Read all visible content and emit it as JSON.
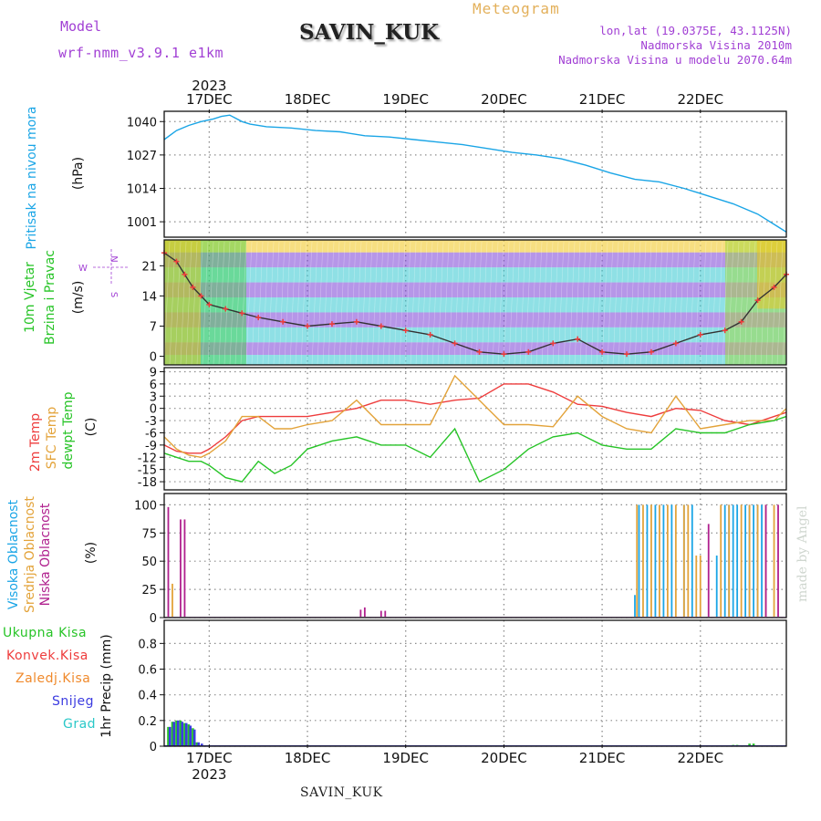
{
  "header": {
    "model_label": "Model",
    "model_version": "wrf-nmm_v3.9.1 e1km",
    "station": "SAVIN_KUK",
    "product": "Meteogram",
    "info_lines": [
      "lon,lat (19.0375E, 43.1125N)",
      "Nadmorska Visina 2010m",
      "Nadmorska Visina u modelu 2070.64m"
    ],
    "footer_station": "SAVIN_KUK",
    "credit": "made by Angel"
  },
  "time_axis": {
    "year": "2023",
    "day_labels": [
      "17DEC",
      "18DEC",
      "19DEC",
      "20DEC",
      "21DEC",
      "22DEC"
    ]
  },
  "chart_data": [
    {
      "type": "line",
      "panel": "pressure",
      "ylabel_lines": [
        "Pritisak na nivou mora"
      ],
      "unit": "(hPa)",
      "yticks": [
        1001,
        1014,
        1027,
        1040
      ],
      "ylim": [
        995,
        1044
      ],
      "xlim_hours": [
        -11,
        141
      ],
      "grid": true,
      "series": [
        {
          "color": "#1aa5e6",
          "x": [
            -11,
            -8,
            -5,
            -2,
            1,
            3,
            5,
            8,
            10,
            14,
            20,
            26,
            32,
            38,
            44,
            50,
            56,
            62,
            68,
            74,
            80,
            86,
            92,
            98,
            104,
            110,
            116,
            122,
            128,
            134,
            138,
            141
          ],
          "y": [
            1033,
            1036.5,
            1038.5,
            1040,
            1041,
            1042,
            1042.5,
            1040,
            1039,
            1038,
            1037.5,
            1036.5,
            1036,
            1034.5,
            1034,
            1033,
            1032,
            1031,
            1029.5,
            1028,
            1027,
            1025.5,
            1023,
            1020,
            1017.5,
            1016.5,
            1014,
            1011,
            1008,
            1004,
            1000,
            997
          ]
        }
      ]
    },
    {
      "type": "line",
      "panel": "wind",
      "ylabel_lines": [
        "10m Vjetar",
        "Brzina i Pravac"
      ],
      "unit": "(m/s)",
      "compass_top": "N",
      "compass_left": "W",
      "compass_right": "E",
      "compass_bottom": "S",
      "yticks": [
        0,
        7,
        14,
        21
      ],
      "ylim": [
        -2,
        27
      ],
      "xlim_hours": [
        -11,
        141
      ],
      "grid": true,
      "series": [
        {
          "color": "#333333",
          "x": [
            -11,
            -8,
            -6,
            -4,
            -2,
            0,
            4,
            8,
            12,
            18,
            24,
            30,
            36,
            42,
            48,
            54,
            60,
            66,
            72,
            78,
            84,
            90,
            96,
            102,
            108,
            114,
            120,
            126,
            130,
            134,
            138,
            141
          ],
          "y": [
            24,
            22,
            19,
            16,
            14,
            12,
            11,
            10,
            9,
            8,
            7,
            7.5,
            8,
            7,
            6,
            5,
            3,
            1,
            0.5,
            1,
            3,
            4,
            1,
            0.5,
            1,
            3,
            5,
            6,
            8,
            13,
            16,
            19
          ]
        }
      ]
    },
    {
      "type": "line",
      "panel": "temperature",
      "ylabel_lines": [
        "2m Temp",
        "SFC Temp",
        "dewpt Temp"
      ],
      "ylabel_colors": [
        "#ee3c3c",
        "#e3a33a",
        "#27c427"
      ],
      "unit": "(C)",
      "yticks": [
        -18,
        -15,
        -12,
        -9,
        -6,
        -3,
        0,
        3,
        6,
        9
      ],
      "ylim": [
        -20,
        10
      ],
      "xlim_hours": [
        -11,
        141
      ],
      "grid": true,
      "series": [
        {
          "color": "#ee3c3c",
          "x": [
            -11,
            -8,
            -5,
            -2,
            0,
            4,
            8,
            12,
            16,
            20,
            24,
            30,
            36,
            42,
            48,
            54,
            60,
            66,
            72,
            78,
            84,
            90,
            96,
            102,
            108,
            114,
            120,
            126,
            132,
            138,
            141
          ],
          "y": [
            -9,
            -10.5,
            -11,
            -11,
            -10,
            -7,
            -3,
            -2,
            -2,
            -2,
            -2,
            -1,
            0,
            2,
            2,
            1,
            2,
            2.5,
            6,
            6,
            4,
            1,
            0.5,
            -1,
            -2,
            0,
            -0.5,
            -3,
            -4,
            -2,
            -1
          ]
        },
        {
          "color": "#e3a33a",
          "x": [
            -11,
            -8,
            -5,
            -2,
            0,
            4,
            8,
            12,
            16,
            20,
            24,
            30,
            36,
            42,
            48,
            54,
            60,
            66,
            72,
            78,
            84,
            90,
            96,
            102,
            108,
            114,
            120,
            126,
            132,
            138,
            141
          ],
          "y": [
            -7,
            -10,
            -11.5,
            -12,
            -11,
            -8,
            -2,
            -2,
            -5,
            -5,
            -4,
            -3,
            2,
            -4,
            -4,
            -4,
            8,
            2,
            -4,
            -4,
            -4.5,
            3,
            -2,
            -5,
            -6,
            3,
            -5,
            -4,
            -3,
            -3,
            0
          ]
        },
        {
          "color": "#27c427",
          "x": [
            -11,
            -8,
            -5,
            -2,
            0,
            4,
            8,
            12,
            16,
            20,
            24,
            30,
            36,
            42,
            48,
            54,
            60,
            66,
            72,
            78,
            84,
            90,
            96,
            102,
            108,
            114,
            120,
            126,
            132,
            138,
            141
          ],
          "y": [
            -11,
            -12,
            -13,
            -13,
            -14,
            -17,
            -18,
            -13,
            -16,
            -14,
            -10,
            -8,
            -7,
            -9,
            -9,
            -12,
            -5,
            -18,
            -15,
            -10,
            -7,
            -6,
            -9,
            -10,
            -10,
            -5,
            -6,
            -6,
            -4,
            -3,
            -2
          ]
        }
      ]
    },
    {
      "type": "bar",
      "panel": "clouds",
      "ylabel_lines": [
        "Visoka Oblacnost",
        "Srednja Oblacnost",
        "Niska Oblacnost"
      ],
      "ylabel_colors": [
        "#1aa5e6",
        "#e3a33a",
        "#b0208e"
      ],
      "unit": "(%)",
      "yticks": [
        0,
        25,
        50,
        75,
        100
      ],
      "ylim": [
        0,
        110
      ],
      "xlim_hours": [
        -11,
        141
      ],
      "grid": true,
      "series": [
        {
          "name": "Visoka Oblacnost",
          "color": "#1aa5e6",
          "x": [
            104,
            105,
            107,
            109,
            111,
            113,
            116,
            118,
            124,
            126,
            127,
            128,
            129,
            131,
            132,
            133,
            134,
            135
          ],
          "values": [
            20,
            100,
            100,
            100,
            100,
            100,
            100,
            100,
            55,
            100,
            100,
            100,
            100,
            100,
            100,
            100,
            100,
            100
          ]
        },
        {
          "name": "Srednja Oblacnost",
          "color": "#e3a33a",
          "x": [
            -9,
            104.5,
            106,
            108,
            110,
            112,
            114,
            116,
            117,
            119,
            120,
            125,
            127,
            130,
            132,
            134,
            136,
            138
          ],
          "values": [
            30,
            100,
            100,
            100,
            100,
            100,
            100,
            100,
            100,
            55,
            55,
            100,
            100,
            100,
            100,
            100,
            100,
            100
          ]
        },
        {
          "name": "Niska Oblacnost",
          "color": "#b0208e",
          "x": [
            -10,
            -7,
            -6,
            37,
            38,
            42,
            43,
            122,
            136,
            139
          ],
          "values": [
            98,
            87,
            87,
            7,
            9,
            6,
            6,
            83,
            100,
            100
          ]
        }
      ]
    },
    {
      "type": "bar",
      "panel": "precip",
      "ylabel_lines": [
        "Ukupna  Kisa",
        "Konvek.Kisa",
        "Zaledj.Kisa",
        "Snijeg",
        "Grad"
      ],
      "ylabel_colors": [
        "#27c427",
        "#ee3c3c",
        "#f08a2c",
        "#3c3ce0",
        "#2ac8c8"
      ],
      "unit": "1hr Precip (mm)",
      "yticks": [
        0,
        0.2,
        0.4,
        0.6,
        0.8
      ],
      "ylim": [
        0,
        0.98
      ],
      "xlim_hours": [
        -11,
        141
      ],
      "grid": true,
      "series": [
        {
          "name": "Ukupna Kisa",
          "color": "#27c427",
          "x": [
            -10,
            -9,
            -8,
            -7,
            -6,
            -5,
            -4,
            -3,
            128,
            129,
            132,
            133
          ],
          "values": [
            0.15,
            0.19,
            0.2,
            0.2,
            0.18,
            0.17,
            0.14,
            0.03,
            0.01,
            0.01,
            0.02,
            0.02
          ]
        },
        {
          "name": "Snijeg",
          "color": "#3c3ce0",
          "x": [
            -9.6,
            -8.6,
            -7.6,
            -6.6,
            -5.6,
            -4.6,
            -3.6,
            -2.6,
            -1.8
          ],
          "values": [
            0.15,
            0.19,
            0.2,
            0.19,
            0.18,
            0.16,
            0.13,
            0.03,
            0.02
          ]
        }
      ]
    }
  ]
}
